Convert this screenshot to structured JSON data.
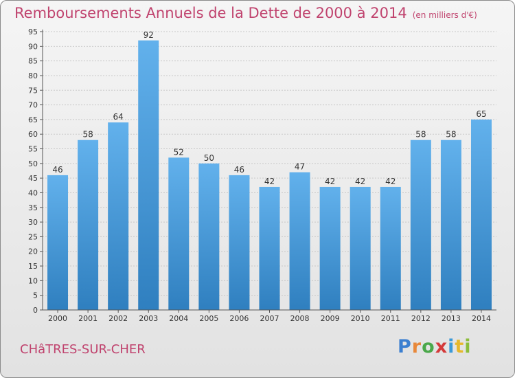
{
  "title": "Remboursements Annuels de la Dette de 2000 à 2014",
  "unit": "(en milliers d'€)",
  "town": "CHâTRES-SUR-CHER",
  "logo": {
    "text": "Proxiti",
    "letter_colors": [
      "#3b7fd0",
      "#e8883a",
      "#4aa84a",
      "#d43a3a",
      "#3b9ad8",
      "#e6b82c",
      "#8bbd3a"
    ]
  },
  "colors": {
    "title": "#c0436e",
    "bar_light": "#62b1ec",
    "bar_dark": "#2f7fbf"
  },
  "chart_data": {
    "type": "bar",
    "title": "Remboursements Annuels de la Dette de 2000 à 2014",
    "subtitle": "(en milliers d'€)",
    "categories": [
      "2000",
      "2001",
      "2002",
      "2003",
      "2004",
      "2005",
      "2006",
      "2007",
      "2008",
      "2009",
      "2010",
      "2011",
      "2012",
      "2013",
      "2014"
    ],
    "values": [
      46,
      58,
      64,
      92,
      52,
      50,
      46,
      42,
      47,
      42,
      42,
      42,
      58,
      58,
      65
    ],
    "ylim": [
      0,
      95
    ],
    "ytick_step": 5,
    "grid": true,
    "data_labels": true
  }
}
